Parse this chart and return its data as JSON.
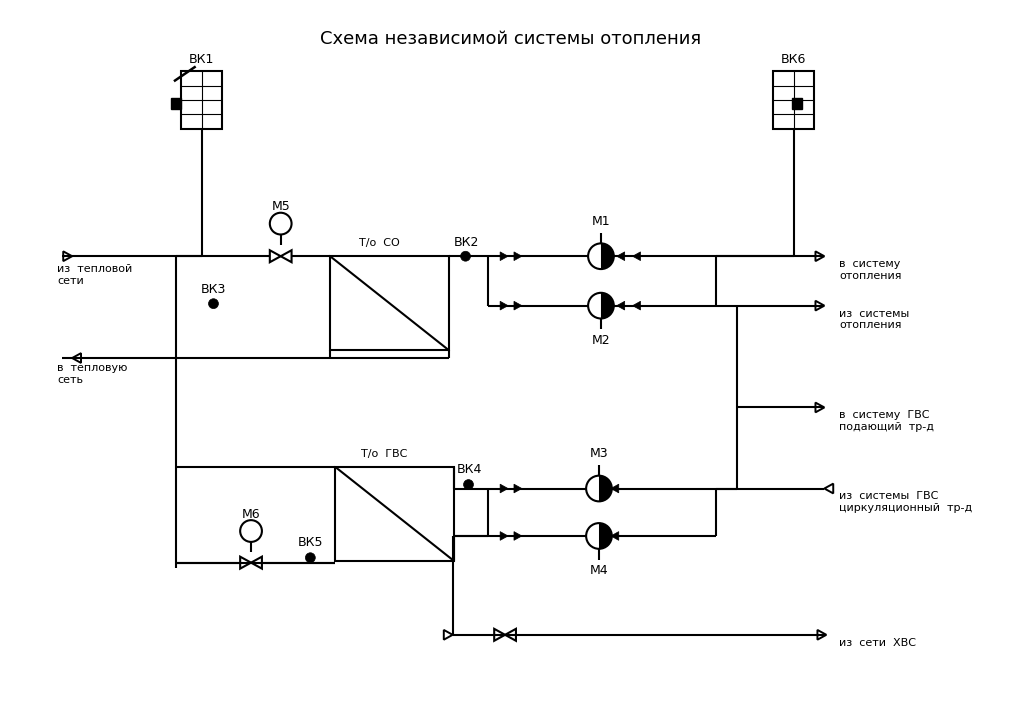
{
  "title": "Схема независимой системы отопления",
  "bg_color": "#ffffff",
  "line_color": "#000000",
  "figsize": [
    10.23,
    7.23
  ],
  "dpi": 100,
  "labels": {
    "vk1": "ВК1",
    "vk2": "ВК2",
    "vk3": "ВК3",
    "vk4": "ВК4",
    "vk5": "ВК5",
    "vk6": "ВК6",
    "m1": "М1",
    "m2": "М2",
    "m3": "М3",
    "m4": "М4",
    "m5": "М5",
    "m6": "М6",
    "hex_co": "Т/о  СО",
    "hex_gvs": "Т/о  ГВС",
    "out1a": "в  систему",
    "out1b": "отопления",
    "out2a": "из  системы",
    "out2b": "отопления",
    "out3a": "в  систему  ГВС",
    "out3b": "подающий  тр-д",
    "out4a": "из  системы  ГВС",
    "out4b": "циркуляционный  тр-д",
    "out5": "из  сети  ХВС",
    "in1a": "из  тепловой",
    "in1b": "сети",
    "in2a": "в  тепловую",
    "in2b": "сеть"
  }
}
